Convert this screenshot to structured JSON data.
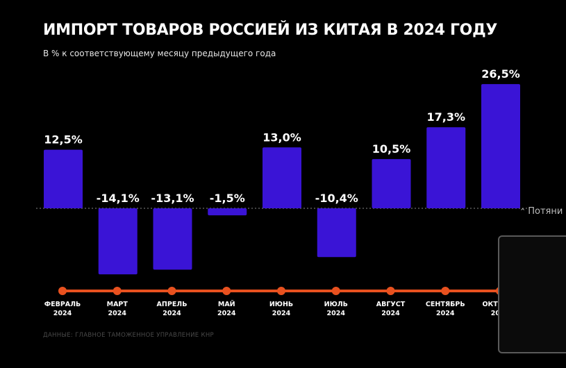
{
  "title": "ИМПОРТ ТОВАРОВ РОССИЕЙ ИЗ КИТАЯ В 2024 ГОДУ",
  "subtitle": "В % к соответствующему месяцу предыдущего года",
  "source": "ДАННЫЕ: ГЛАВНОЕ ТАМОЖЕННОЕ УПРАВЛЕНИЕ КНР",
  "side_label": "Потяни",
  "colors": {
    "background": "#000000",
    "bar": "#3a14d6",
    "timeline": "#e8511f",
    "text": "#ffffff"
  },
  "chart_data": {
    "type": "bar",
    "categories": [
      "ФЕВРАЛЬ",
      "МАРТ",
      "АПРЕЛЬ",
      "МАЙ",
      "ИЮНЬ",
      "ИЮЛЬ",
      "АВГУСТ",
      "СЕНТЯБРЬ",
      "ОКТЯБРЬ"
    ],
    "category_year": "2024",
    "values": [
      12.5,
      -14.1,
      -13.1,
      -1.5,
      13.0,
      -10.4,
      10.5,
      17.3,
      26.5
    ],
    "data_labels": [
      "12,5%",
      "-14,1%",
      "-13,1%",
      "-1,5%",
      "13,0%",
      "-10,4%",
      "10,5%",
      "17,3%",
      "26,5%"
    ],
    "title": "ИМПОРТ ТОВАРОВ РОССИЕЙ ИЗ КИТАЯ В 2024 ГОДУ",
    "subtitle": "В % к соответствующему месяцу предыдущего года",
    "xlabel": "",
    "ylabel": "",
    "ylim": [
      -15,
      27
    ],
    "grid": false,
    "legend": "none"
  }
}
